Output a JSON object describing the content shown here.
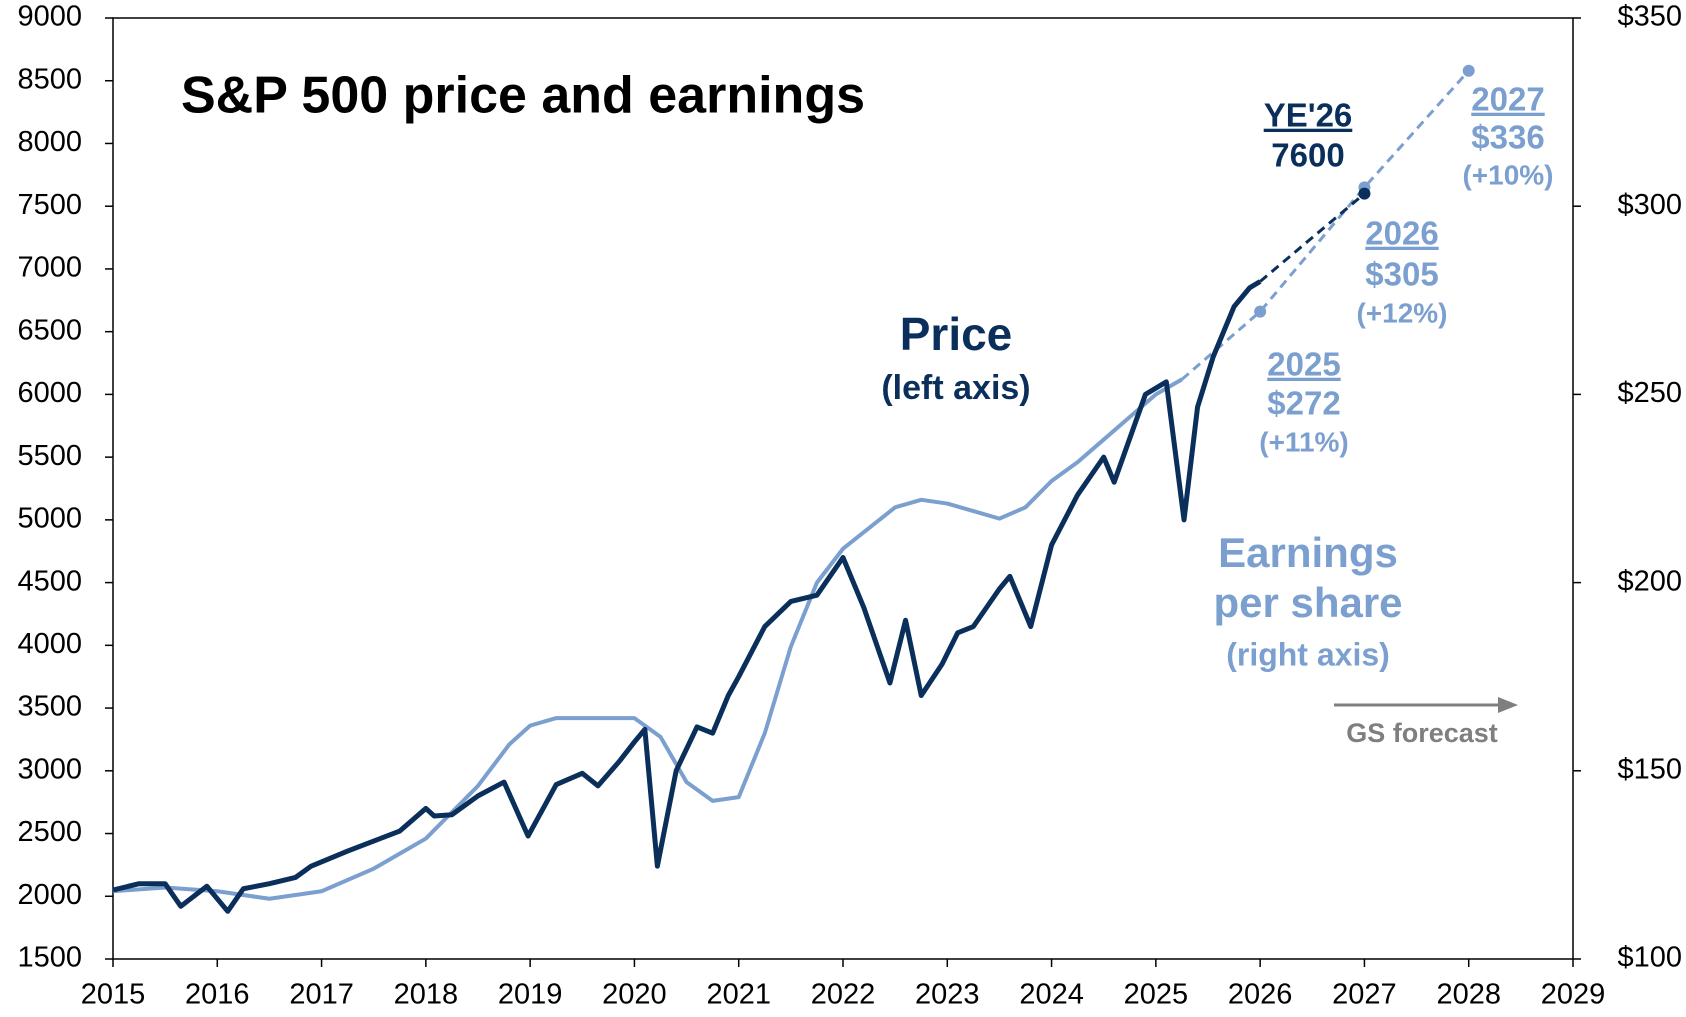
{
  "chart_data": {
    "type": "line",
    "title": "S&P 500 price and earnings",
    "xlim": [
      2015,
      2029
    ],
    "xticks": [
      2015,
      2016,
      2017,
      2018,
      2019,
      2020,
      2021,
      2022,
      2023,
      2024,
      2025,
      2026,
      2027,
      2028,
      2029
    ],
    "ylim": [
      1500,
      9000
    ],
    "yticks": [
      1500,
      2000,
      2500,
      3000,
      3500,
      4000,
      4500,
      5000,
      5500,
      6000,
      6500,
      7000,
      7500,
      8000,
      8500,
      9000
    ],
    "y2lim": [
      100,
      350
    ],
    "y2ticks": [
      {
        "value": 100,
        "label": "$100"
      },
      {
        "value": 150,
        "label": "$150"
      },
      {
        "value": 200,
        "label": "$200"
      },
      {
        "value": 250,
        "label": "$250"
      },
      {
        "value": 300,
        "label": "$300"
      },
      {
        "value": 350,
        "label": "$350"
      }
    ],
    "series": [
      {
        "name": "Price",
        "color": "#0b2f5b",
        "x": [
          2015.0,
          2015.25,
          2015.5,
          2015.65,
          2015.9,
          2016.1,
          2016.25,
          2016.5,
          2016.75,
          2016.9,
          2017.25,
          2017.5,
          2017.75,
          2018.0,
          2018.08,
          2018.25,
          2018.5,
          2018.75,
          2018.98,
          2019.25,
          2019.5,
          2019.65,
          2019.85,
          2020.0,
          2020.1,
          2020.22,
          2020.4,
          2020.6,
          2020.75,
          2020.9,
          2021.0,
          2021.25,
          2021.5,
          2021.75,
          2022.0,
          2022.2,
          2022.45,
          2022.6,
          2022.75,
          2022.95,
          2023.1,
          2023.25,
          2023.5,
          2023.6,
          2023.8,
          2024.0,
          2024.25,
          2024.5,
          2024.6,
          2024.9,
          2025.1,
          2025.27,
          2025.4,
          2025.55,
          2025.75,
          2025.9,
          2026.0
        ],
        "values": [
          2050,
          2100,
          2100,
          1920,
          2080,
          1880,
          2060,
          2100,
          2150,
          2240,
          2360,
          2440,
          2520,
          2700,
          2640,
          2650,
          2800,
          2910,
          2480,
          2890,
          2980,
          2880,
          3070,
          3230,
          3330,
          2240,
          3000,
          3350,
          3300,
          3600,
          3750,
          4150,
          4350,
          4400,
          4700,
          4300,
          3700,
          4200,
          3600,
          3850,
          4100,
          4150,
          4450,
          4550,
          4150,
          4800,
          5200,
          5500,
          5300,
          6000,
          6100,
          5000,
          5900,
          6300,
          6700,
          6850,
          6900
        ]
      },
      {
        "name": "Earnings per share",
        "color": "#7b9fcf",
        "axis": "y2",
        "x": [
          2015.0,
          2015.5,
          2016.0,
          2016.5,
          2017.0,
          2017.5,
          2017.75,
          2018.0,
          2018.5,
          2018.8,
          2019.0,
          2019.25,
          2019.5,
          2019.75,
          2020.0,
          2020.25,
          2020.5,
          2020.75,
          2021.0,
          2021.25,
          2021.5,
          2021.75,
          2022.0,
          2022.5,
          2022.75,
          2023.0,
          2023.25,
          2023.5,
          2023.75,
          2024.0,
          2024.25,
          2024.5,
          2024.75,
          2025.0,
          2025.25
        ],
        "values": [
          118,
          119,
          118,
          116,
          118,
          124,
          128,
          132,
          146,
          157,
          162,
          164,
          164,
          164,
          164,
          159,
          147,
          142,
          143,
          160,
          183,
          200,
          209,
          220,
          222,
          221,
          219,
          217,
          220,
          227,
          232,
          238,
          244,
          250,
          254
        ]
      },
      {
        "color": "#0b2f5b",
        "dashed": true,
        "x": [
          2026.0,
          2027.0
        ],
        "values": [
          6900,
          7600
        ]
      },
      {
        "color": "#7b9fcf",
        "axis": "y2",
        "dashed": true,
        "x": [
          2025.25,
          2026.0,
          2027.0,
          2028.0
        ],
        "values": [
          254,
          272,
          305,
          336
        ]
      }
    ],
    "annotations": {
      "price_axis": "(left axis)",
      "eps_axis": "(right axis)",
      "target_title": "YE'26",
      "target_value": "7600",
      "eps_2025": [
        "2025",
        "$272",
        "(+11%)"
      ],
      "eps_2026": [
        "2026",
        "$305",
        "(+12%)"
      ],
      "eps_2027": [
        "2027",
        "$336",
        "(+10%)"
      ],
      "forecast": "GS forecast"
    }
  }
}
